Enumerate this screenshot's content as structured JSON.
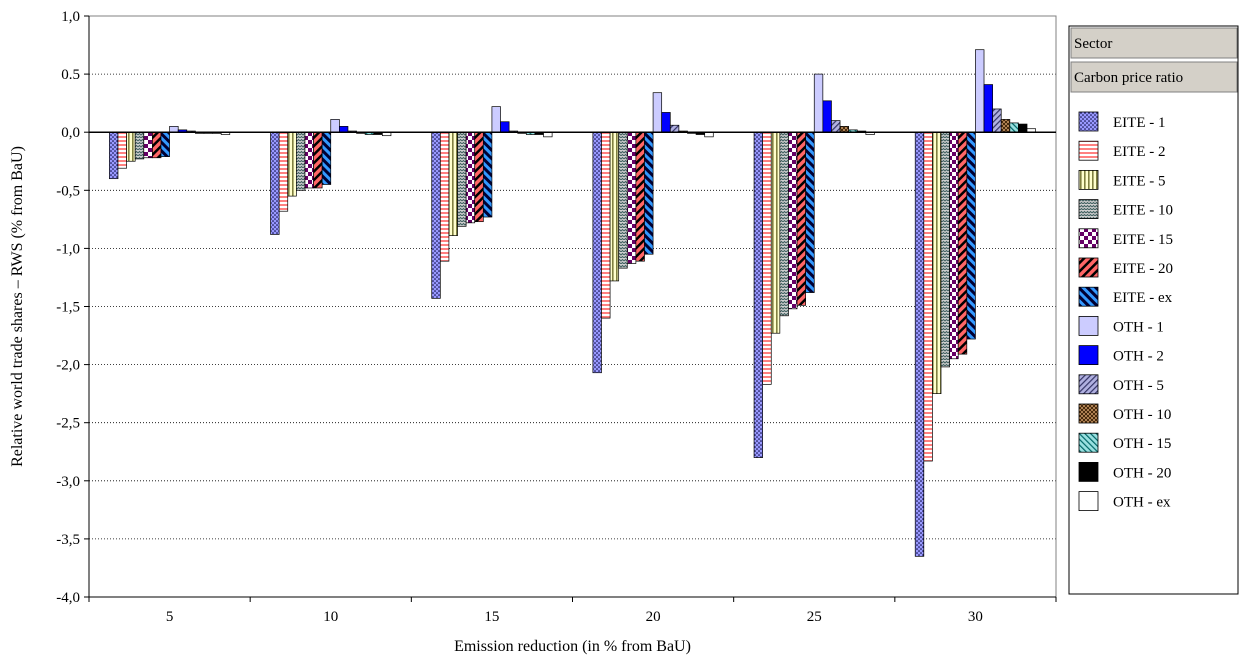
{
  "chart_data": {
    "type": "bar",
    "title": "",
    "xlabel": "Emission reduction (in % from BaU)",
    "ylabel": "Relative world trade shares – RWS (% from BaU)",
    "categories": [
      "5",
      "10",
      "15",
      "20",
      "25",
      "30"
    ],
    "ylim": [
      -4.0,
      1.0
    ],
    "yticks": [
      1.0,
      0.5,
      0.0,
      -0.5,
      -1.0,
      -1.5,
      -2.0,
      -2.5,
      -3.0,
      -3.5,
      -4.0
    ],
    "ytick_labels": [
      "1,0",
      "0.5",
      "0,0",
      "-0,5",
      "-1,0",
      "-1,5",
      "-2,0",
      "-2,5",
      "-3,0",
      "-3,5",
      "-4,0"
    ],
    "grid": "horizontal-dotted",
    "legend_position": "right",
    "legend_headers": [
      "Sector",
      "Carbon price ratio"
    ],
    "series": [
      {
        "name": "EITE - 1",
        "color": "#9999ff",
        "pattern": "dots",
        "values": [
          -0.4,
          -0.88,
          -1.43,
          -2.07,
          -2.8,
          -3.65
        ]
      },
      {
        "name": "EITE - 2",
        "color": "#ff9999",
        "pattern": "hstripes",
        "values": [
          -0.31,
          -0.68,
          -1.11,
          -1.6,
          -2.17,
          -2.83
        ]
      },
      {
        "name": "EITE - 5",
        "color": "#ffffcc",
        "pattern": "vstripes",
        "values": [
          -0.25,
          -0.55,
          -0.89,
          -1.28,
          -1.73,
          -2.25
        ]
      },
      {
        "name": "EITE - 10",
        "color": "#c0c0c0",
        "pattern": "wave",
        "values": [
          -0.23,
          -0.5,
          -0.81,
          -1.17,
          -1.58,
          -2.02
        ]
      },
      {
        "name": "EITE - 15",
        "color": "#660066",
        "pattern": "checker",
        "values": [
          -0.22,
          -0.48,
          -0.78,
          -1.13,
          -1.52,
          -1.95
        ]
      },
      {
        "name": "EITE - 20",
        "color": "#ff6666",
        "pattern": "diagdown",
        "values": [
          -0.22,
          -0.48,
          -0.77,
          -1.11,
          -1.49,
          -1.91
        ]
      },
      {
        "name": "EITE - ex",
        "color": "#000066",
        "pattern": "diagup",
        "values": [
          -0.21,
          -0.45,
          -0.73,
          -1.05,
          -1.38,
          -1.78
        ]
      },
      {
        "name": "OTH - 1",
        "color": "#ccccff",
        "pattern": "solid",
        "values": [
          0.05,
          0.11,
          0.22,
          0.34,
          0.5,
          0.71
        ]
      },
      {
        "name": "OTH - 2",
        "color": "#0000ff",
        "pattern": "solid",
        "values": [
          0.02,
          0.05,
          0.09,
          0.17,
          0.27,
          0.41
        ]
      },
      {
        "name": "OTH - 5",
        "color": "#9999cc",
        "pattern": "diagdown2",
        "values": [
          0.01,
          0.01,
          0.01,
          0.06,
          0.1,
          0.2
        ]
      },
      {
        "name": "OTH - 10",
        "color": "#996633",
        "pattern": "crosshatch",
        "values": [
          -0.01,
          -0.01,
          -0.01,
          0.01,
          0.05,
          0.11
        ]
      },
      {
        "name": "OTH - 15",
        "color": "#66cccc",
        "pattern": "diagup2",
        "values": [
          -0.01,
          -0.02,
          -0.02,
          -0.01,
          0.02,
          0.08
        ]
      },
      {
        "name": "OTH - 20",
        "color": "#000000",
        "pattern": "solid",
        "values": [
          -0.01,
          -0.02,
          -0.02,
          -0.02,
          0.01,
          0.07
        ]
      },
      {
        "name": "OTH - ex",
        "color": "#ffffff",
        "pattern": "solid",
        "values": [
          -0.02,
          -0.03,
          -0.04,
          -0.04,
          -0.02,
          0.03
        ]
      }
    ]
  }
}
